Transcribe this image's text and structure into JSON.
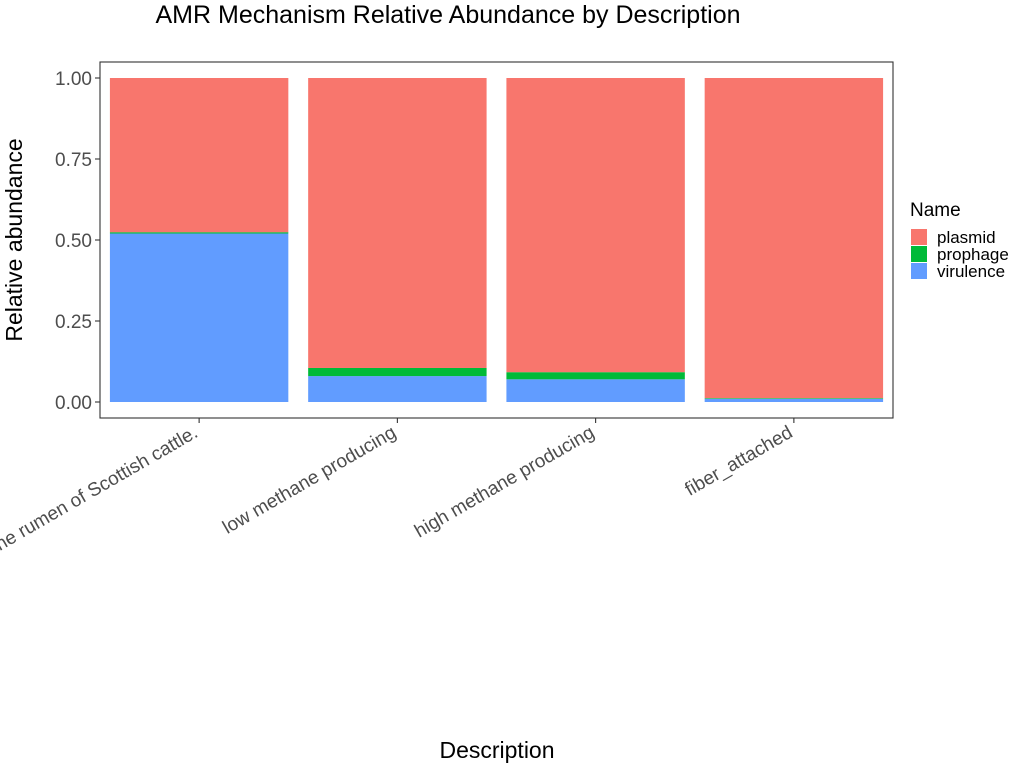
{
  "chart_data": {
    "type": "bar",
    "stacked": true,
    "title": "AMR Mechanism Relative Abundance by Description",
    "xlabel": "Description",
    "ylabel": "Relative abundance",
    "ylim": [
      0,
      1
    ],
    "yticks": [
      "0.00",
      "0.25",
      "0.50",
      "0.75",
      "1.00"
    ],
    "categories": [
      "the rumen of Scottish cattle.",
      "low methane producing",
      "high methane producing",
      "fiber_attached"
    ],
    "legend_title": "Name",
    "legend_position": "right",
    "grid": false,
    "series": [
      {
        "name": "virulence",
        "color": "#619CFF",
        "values": [
          0.52,
          0.08,
          0.07,
          0.01
        ]
      },
      {
        "name": "prophage",
        "color": "#00BA38",
        "values": [
          0.004,
          0.025,
          0.022,
          0.002
        ]
      },
      {
        "name": "plasmid",
        "color": "#F8766D",
        "values": [
          0.476,
          0.895,
          0.908,
          0.988
        ]
      }
    ],
    "legend_order": [
      "plasmid",
      "prophage",
      "virulence"
    ]
  }
}
